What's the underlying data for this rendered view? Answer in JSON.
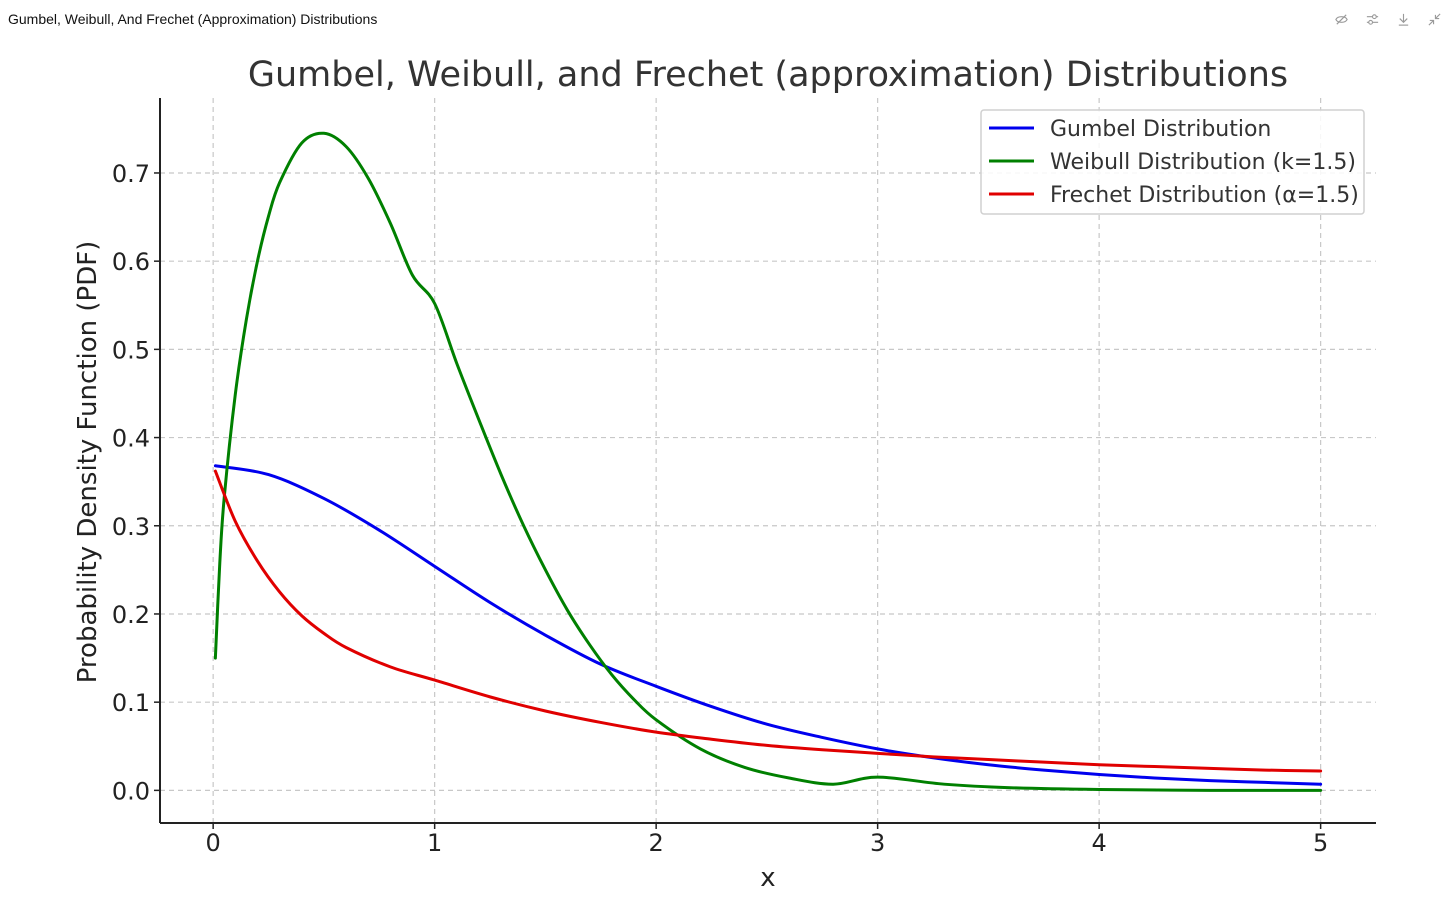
{
  "window": {
    "title": "Gumbel, Weibull, And Frechet (Approximation) Distributions",
    "tools": [
      {
        "name": "hide-icon",
        "label": "Hide"
      },
      {
        "name": "settings-icon",
        "label": "Settings"
      },
      {
        "name": "download-icon",
        "label": "Download"
      },
      {
        "name": "collapse-icon",
        "label": "Collapse"
      }
    ]
  },
  "chart_data": {
    "type": "line",
    "title": "Gumbel, Weibull, and Frechet (approximation) Distributions",
    "xlabel": "x",
    "ylabel": "Probability Density Function (PDF)",
    "xlim": [
      -0.24,
      5.25
    ],
    "ylim": [
      -0.037,
      0.785
    ],
    "x_ticks": [
      0,
      1,
      2,
      3,
      4,
      5
    ],
    "y_ticks": [
      0.0,
      0.1,
      0.2,
      0.3,
      0.4,
      0.5,
      0.6,
      0.7
    ],
    "x_tick_labels": [
      "0",
      "1",
      "2",
      "3",
      "4",
      "5"
    ],
    "y_tick_labels": [
      "0.0",
      "0.1",
      "0.2",
      "0.3",
      "0.4",
      "0.5",
      "0.6",
      "0.7"
    ],
    "grid": true,
    "legend_position": "top-right",
    "series": [
      {
        "name": "Gumbel Distribution",
        "color": "#0000ee",
        "x": [
          0.01,
          0.25,
          0.5,
          0.75,
          1.0,
          1.25,
          1.5,
          1.75,
          2.0,
          2.25,
          2.5,
          2.75,
          3.0,
          3.25,
          3.5,
          3.75,
          4.0,
          4.25,
          4.5,
          4.75,
          5.0
        ],
        "y": [
          0.368,
          0.358,
          0.331,
          0.295,
          0.254,
          0.213,
          0.176,
          0.143,
          0.118,
          0.095,
          0.075,
          0.06,
          0.047,
          0.037,
          0.029,
          0.023,
          0.018,
          0.014,
          0.011,
          0.009,
          0.007
        ]
      },
      {
        "name": "Weibull Distribution (k=1.5)",
        "color": "#008000",
        "x": [
          0.01,
          0.03,
          0.05,
          0.1,
          0.15,
          0.2,
          0.25,
          0.3,
          0.4,
          0.5,
          0.6,
          0.7,
          0.8,
          0.9,
          1.0,
          1.1,
          1.2,
          1.3,
          1.4,
          1.5,
          1.6,
          1.7,
          1.8,
          1.9,
          2.0,
          2.2,
          2.4,
          2.6,
          2.8,
          3.0,
          3.3,
          3.6,
          4.0,
          4.5,
          5.0
        ],
        "y": [
          0.15,
          0.258,
          0.332,
          0.449,
          0.534,
          0.6,
          0.651,
          0.689,
          0.734,
          0.745,
          0.73,
          0.694,
          0.643,
          0.584,
          0.552,
          0.484,
          0.42,
          0.358,
          0.301,
          0.25,
          0.204,
          0.165,
          0.131,
          0.103,
          0.08,
          0.047,
          0.026,
          0.014,
          0.007,
          0.015,
          0.007,
          0.003,
          0.001,
          0.0,
          0.0
        ]
      },
      {
        "name": "Frechet Distribution (α=1.5)",
        "color": "#e00000",
        "x": [
          0.01,
          0.1,
          0.2,
          0.3,
          0.4,
          0.5,
          0.6,
          0.8,
          1.0,
          1.25,
          1.5,
          1.75,
          2.0,
          2.25,
          2.5,
          2.75,
          3.0,
          3.25,
          3.5,
          3.75,
          4.0,
          4.25,
          4.5,
          4.75,
          5.0
        ],
        "y": [
          0.362,
          0.305,
          0.26,
          0.225,
          0.198,
          0.178,
          0.162,
          0.14,
          0.125,
          0.106,
          0.09,
          0.077,
          0.066,
          0.058,
          0.051,
          0.046,
          0.042,
          0.038,
          0.035,
          0.032,
          0.029,
          0.027,
          0.025,
          0.023,
          0.022
        ]
      }
    ]
  }
}
